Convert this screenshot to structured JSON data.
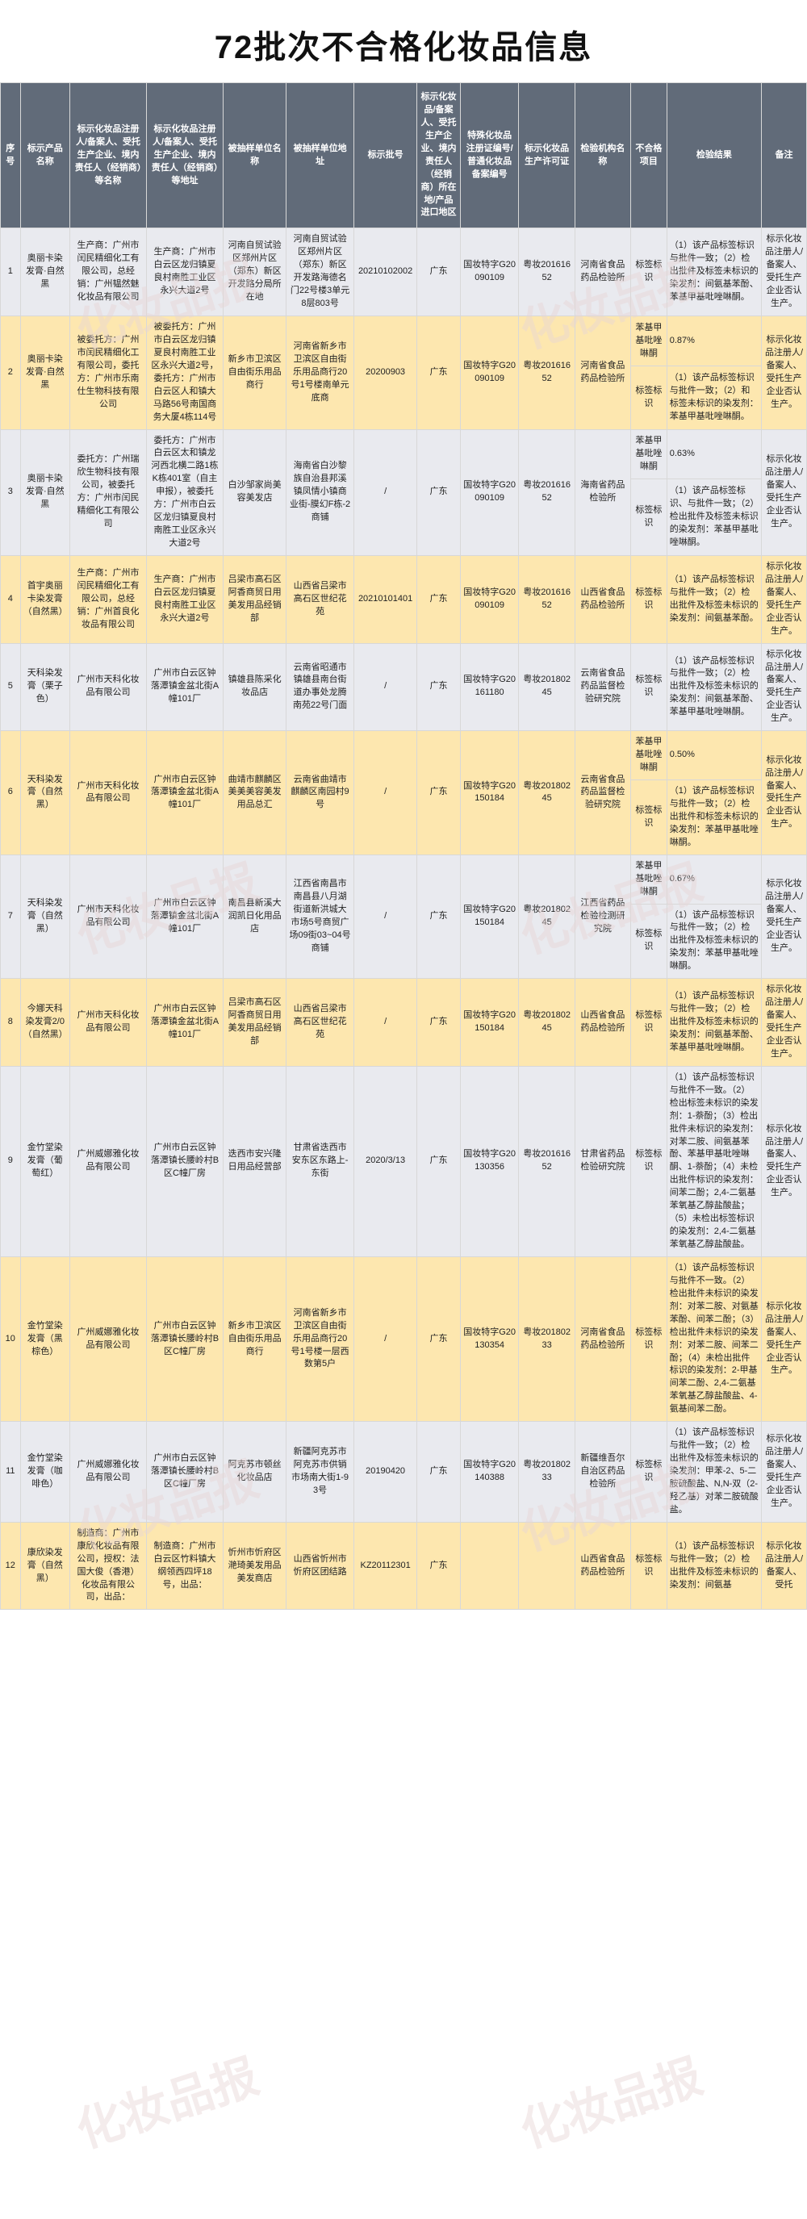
{
  "title": "72批次不合格化妆品信息",
  "watermark": "化妆品报",
  "columns": [
    "序号",
    "标示产品名称",
    "标示化妆品注册人/备案人、受托生产企业、境内责任人（经销商）等名称",
    "标示化妆品注册人/备案人、受托生产企业、境内责任人（经销商）等地址",
    "被抽样单位名称",
    "被抽样单位地址",
    "标示批号",
    "标示化妆品/备案人、受托生产企业、境内责任人（经销商）所在地/产品进口地区",
    "特殊化妆品注册证编号/普通化妆品备案编号",
    "标示化妆品生产许可证",
    "检验机构名称",
    "不合格项目",
    "检验结果",
    "备注"
  ],
  "rows": [
    {
      "seq": "1",
      "name": "奥丽卡染发膏·自然黑",
      "reg": "生产商：广州市闰民精细化工有限公司，总经销：广州韫然魅化妆品有限公司",
      "addr": "生产商：广州市白云区龙归镇夏良村南胜工业区永兴大道2号",
      "samp": "河南自贸试验区郑州片区（郑东）新区开发路分局所在地",
      "saddr": "河南自贸试验区郑州片区（郑东）新区开发路海德名门22号楼3单元8层803号",
      "batch": "20210102002",
      "area": "广东",
      "cert": "国妆特字G20090109",
      "lic": "粤妆20161652",
      "org": "河南省食品药品检验所",
      "item": "标签标识",
      "res": "（1）该产品标签标识与批件一致；（2）检出批件及标签未标识的染发剂：间氨基苯酚、苯基甲基吡唑啉酮。",
      "note": "标示化妆品注册人/备案人、受托生产企业否认生产。"
    },
    {
      "seq": "2",
      "name": "奥丽卡染发膏·自然黑",
      "reg": "被委托方：广州市闰民精细化工有限公司，委托方：广州市乐南仕生物科技有限公司",
      "addr": "被委托方：广州市白云区龙归镇夏良村南胜工业区永兴大道2号，委托方：广州市白云区人和镇大马路56号南国商务大厦4栋114号",
      "samp": "新乡市卫滨区自由街乐用品商行",
      "saddr": "河南省新乡市卫滨区自由街乐用品商行20号1号楼南单元底商",
      "batch": "20200903",
      "area": "广东",
      "cert": "国妆特字G20090109",
      "lic": "粤妆20161652",
      "org": "河南省食品药品检验所",
      "item": "标签标识",
      "res": "（1）该产品标签标识与批件一致；（2）和标签未标识的染发剂：苯基甲基吡唑啉酮。",
      "note": "标示化妆品注册人/备案人、受托生产企业否认生产。",
      "split_item": "苯基甲基吡唑啉酮",
      "split_val": "0.87%"
    },
    {
      "seq": "3",
      "name": "奥丽卡染发膏·自然黑",
      "reg": "委托方：广州瑞欣生物科技有限公司，被委托方：广州市闰民精细化工有限公司",
      "addr": "委托方：广州市白云区太和镇龙河西北横二路1栋K栋401室（自主申报），被委托方：广州市白云区龙归镇夏良村南胜工业区永兴大道2号",
      "samp": "白沙邹家尚美容美发店",
      "saddr": "海南省白沙黎族自治县邦溪镇凤情小镇商业街-膜幻F栋-2商铺",
      "batch": "/",
      "area": "广东",
      "cert": "国妆特字G20090109",
      "lic": "粤妆20161652",
      "org": "海南省药品检验所",
      "item": "标签标识",
      "res": "（1）该产品标签标识、与批件一致；（2）检出批件及标签未标识的染发剂：苯基甲基吡唑啉酮。",
      "note": "标示化妆品注册人/备案人、受托生产企业否认生产。",
      "split_item": "苯基甲基吡唑啉酮",
      "split_val": "0.63%"
    },
    {
      "seq": "4",
      "name": "首宇奥丽卡染发膏（自然黑）",
      "reg": "生产商：广州市闰民精细化工有限公司，总经销：广州首良化妆品有限公司",
      "addr": "生产商：广州市白云区龙归镇夏良村南胜工业区永兴大道2号",
      "samp": "吕梁市高石区阿香商贸日用美发用品经销部",
      "saddr": "山西省吕梁市高石区世纪花苑",
      "batch": "20210101401",
      "area": "广东",
      "cert": "国妆特字G20090109",
      "lic": "粤妆20161652",
      "org": "山西省食品药品检验所",
      "item": "标签标识",
      "res": "（1）该产品标签标识与批件一致；（2）检出批件及标签未标识的染发剂：间氨基苯酚。",
      "note": "标示化妆品注册人/备案人、受托生产企业否认生产。"
    },
    {
      "seq": "5",
      "name": "天科染发膏（栗子色）",
      "reg": "广州市天科化妆品有限公司",
      "addr": "广州市白云区钟落潭镇金盆北街A幢101厂",
      "samp": "镇雄县陈采化妆品店",
      "saddr": "云南省昭通市镇雄县南台街道办事处龙腾南苑22号门面",
      "batch": "/",
      "area": "广东",
      "cert": "国妆特字G20161180",
      "lic": "粤妆20180245",
      "org": "云南省食品药品监督检验研究院",
      "item": "标签标识",
      "res": "（1）该产品标签标识与批件一致；（2）检出批件及标签未标识的染发剂：间氨基苯酚、苯基甲基吡唑啉酮。",
      "note": "标示化妆品注册人/备案人、受托生产企业否认生产。"
    },
    {
      "seq": "6",
      "name": "天科染发膏（自然黑）",
      "reg": "广州市天科化妆品有限公司",
      "addr": "广州市白云区钟落潭镇金盆北街A幢101厂",
      "samp": "曲靖市麒麟区美美美容美发用品总汇",
      "saddr": "云南省曲靖市麒麟区南园村9号",
      "batch": "/",
      "area": "广东",
      "cert": "国妆特字G20150184",
      "lic": "粤妆20180245",
      "org": "云南省食品药品监督检验研究院",
      "item": "标签标识",
      "res": "（1）该产品标签标识与批件一致；（2）检出批件和标签未标识的染发剂：苯基甲基吡唑啉酮。",
      "note": "标示化妆品注册人/备案人、受托生产企业否认生产。",
      "split_item": "苯基甲基吡唑啉酮",
      "split_val": "0.50%"
    },
    {
      "seq": "7",
      "name": "天科染发膏（自然黑）",
      "reg": "广州市天科化妆品有限公司",
      "addr": "广州市白云区钟落潭镇金盆北街A幢101厂",
      "samp": "南昌县新溪大润凯日化用品店",
      "saddr": "江西省南昌市南昌县八月湖街道新洪城大市场5号商贸广场09街03~04号商铺",
      "batch": "/",
      "area": "广东",
      "cert": "国妆特字G20150184",
      "lic": "粤妆20180245",
      "org": "江西省药品检验检测研究院",
      "item": "标签标识",
      "res": "（1）该产品标签标识与批件一致；（2）检出批件及标签未标识的染发剂：苯基甲基吡唑啉酮。",
      "note": "标示化妆品注册人/备案人、受托生产企业否认生产。",
      "split_item": "苯基甲基吡唑啉酮",
      "split_val": "0.67%"
    },
    {
      "seq": "8",
      "name": "今娜天科染发膏2/0（自然黑）",
      "reg": "广州市天科化妆品有限公司",
      "addr": "广州市白云区钟落潭镇金盆北街A幢101厂",
      "samp": "吕梁市高石区阿香商贸日用美发用品经销部",
      "saddr": "山西省吕梁市高石区世纪花苑",
      "batch": "/",
      "area": "广东",
      "cert": "国妆特字G20150184",
      "lic": "粤妆20180245",
      "org": "山西省食品药品检验所",
      "item": "标签标识",
      "res": "（1）该产品标签标识与批件一致；（2）检出批件及标签未标识的染发剂：间氨基苯酚、苯基甲基吡唑啉酮。",
      "note": "标示化妆品注册人/备案人、受托生产企业否认生产。"
    },
    {
      "seq": "9",
      "name": "金竹堂染发膏（葡萄红）",
      "reg": "广州威娜雅化妆品有限公司",
      "addr": "广州市白云区钟落潭镇长腰岭村B区C幢厂房",
      "samp": "迭西市安兴隆日用品经营部",
      "saddr": "甘肃省迭西市安东区东路上-东街",
      "batch": "2020/3/13",
      "area": "广东",
      "cert": "国妆特字G20130356",
      "lic": "粤妆20161652",
      "org": "甘肃省药品检验研究院",
      "item": "标签标识",
      "res": "（1）该产品标签标识与批件不一致。（2）检出标签未标识的染发剂：1-萘酚；（3）检出批件未标识的染发剂：对苯二胺、间氨基苯酚、苯基甲基吡唑啉酮、1-萘酚；（4）未检出批件标识的染发剂：间苯二酚；2,4-二氨基苯氧基乙醇盐酸盐；（5）未检出标签标识的染发剂：2,4-二氨基苯氧基乙醇盐酸盐。",
      "note": "标示化妆品注册人/备案人、受托生产企业否认生产。"
    },
    {
      "seq": "10",
      "name": "金竹堂染发膏（黑棕色）",
      "reg": "广州威娜雅化妆品有限公司",
      "addr": "广州市白云区钟落潭镇长腰岭村B区C幢厂房",
      "samp": "新乡市卫滨区自由街乐用品商行",
      "saddr": "河南省新乡市卫滨区自由街乐用品商行20号1号楼一层西数第5户",
      "batch": "/",
      "area": "广东",
      "cert": "国妆特字G20130354",
      "lic": "粤妆20180233",
      "org": "河南省食品药品检验所",
      "item": "标签标识",
      "res": "（1）该产品标签标识与批件不一致。（2）检出批件未标识的染发剂：对苯二胺、对氨基苯酚、间苯二酚；（3）检出批件未标识的染发剂：对苯二胺、间苯二酚；（4）未检出批件标识的染发剂：2-甲基间苯二酚、2,4-二氨基苯氧基乙醇盐酸盐、4-氨基间苯二酚。",
      "note": "标示化妆品注册人/备案人、受托生产企业否认生产。"
    },
    {
      "seq": "11",
      "name": "金竹堂染发膏（咖啡色）",
      "reg": "广州威娜雅化妆品有限公司",
      "addr": "广州市白云区钟落潭镇长腰岭村B区C幢厂房",
      "samp": "阿克苏市顿丝化妆品店",
      "saddr": "新疆阿克苏市阿克苏市供销市场南大街1-93号",
      "batch": "20190420",
      "area": "广东",
      "cert": "国妆特字G20140388",
      "lic": "粤妆20180233",
      "org": "新疆维吾尔自治区药品检验所",
      "item": "标签标识",
      "res": "（1）该产品标签标识与批件一致；（2）检出批件及标签未标识的染发剂：甲苯-2、5-二胺硫酸盐、N,N-双（2-羟乙基）对苯二胺硫酸盐。",
      "note": "标示化妆品注册人/备案人、受托生产企业否认生产。"
    },
    {
      "seq": "12",
      "name": "康欣染发膏（自然黑）",
      "reg": "制造商：广州市康欣化妆品有限公司，授权：法国大俊（香港）化妆品有限公司，出品：",
      "addr": "制造商：广州市白云区竹料镇大纲领西四坪18号，出品：",
      "samp": "忻州市忻府区滟琦美发用品美发商店",
      "saddr": "山西省忻州市忻府区团结路",
      "batch": "KZ20112301",
      "area": "广东",
      "cert": "",
      "lic": "",
      "org": "山西省食品药品检验所",
      "item": "标签标识",
      "res": "（1）该产品标签标识与批件一致；（2）检出批件及标签未标识的染发剂：间氨基",
      "note": "标示化妆品注册人/备案人、受托"
    }
  ]
}
